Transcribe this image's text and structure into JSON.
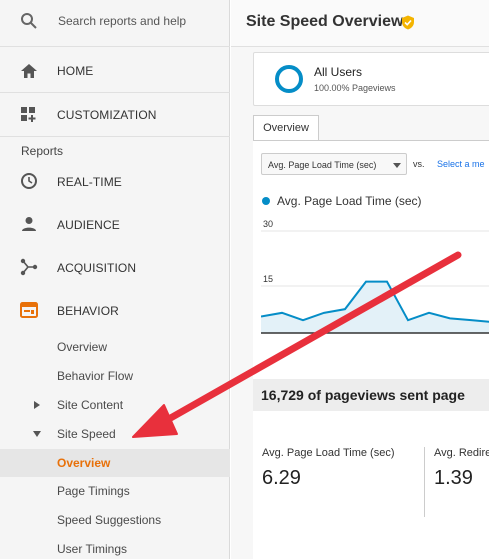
{
  "sidebar": {
    "search_placeholder": "Search reports and help",
    "home_label": "HOME",
    "customization_label": "CUSTOMIZATION",
    "reports_heading": "Reports",
    "realtime_label": "REAL-TIME",
    "audience_label": "AUDIENCE",
    "acquisition_label": "ACQUISITION",
    "behavior_label": "BEHAVIOR",
    "behavior_items": {
      "overview": "Overview",
      "behavior_flow": "Behavior Flow",
      "site_content": "Site Content",
      "site_speed": "Site Speed",
      "site_speed_overview": "Overview",
      "page_timings": "Page Timings",
      "speed_suggestions": "Speed Suggestions",
      "user_timings": "User Timings"
    },
    "accent_color": "#e8710a"
  },
  "main": {
    "title": "Site Speed Overview",
    "segment": {
      "name": "All Users",
      "pct": "100.00% Pageviews"
    },
    "tab_overview": "Overview",
    "metric_select": "Avg. Page Load Time (sec)",
    "vs_label": "vs.",
    "select_metric_link": "Select a me",
    "legend_label": "Avg. Page Load Time (sec)",
    "summary_text": "16,729 of pageviews sent page",
    "stats": [
      {
        "label": "Avg. Page Load Time (sec)",
        "value": "6.29"
      },
      {
        "label": "Avg. Redire",
        "value": "1.39"
      }
    ]
  },
  "chart_data": {
    "type": "area",
    "series": [
      {
        "name": "Avg. Page Load Time (sec)",
        "values": [
          4.5,
          5.5,
          3.5,
          5.5,
          6.5,
          14,
          14,
          3.5,
          5.5,
          4,
          3.5,
          3,
          3
        ]
      }
    ],
    "ylim": [
      0,
      30
    ],
    "yticks": [
      "30",
      "15"
    ],
    "color": "#058dc7"
  }
}
